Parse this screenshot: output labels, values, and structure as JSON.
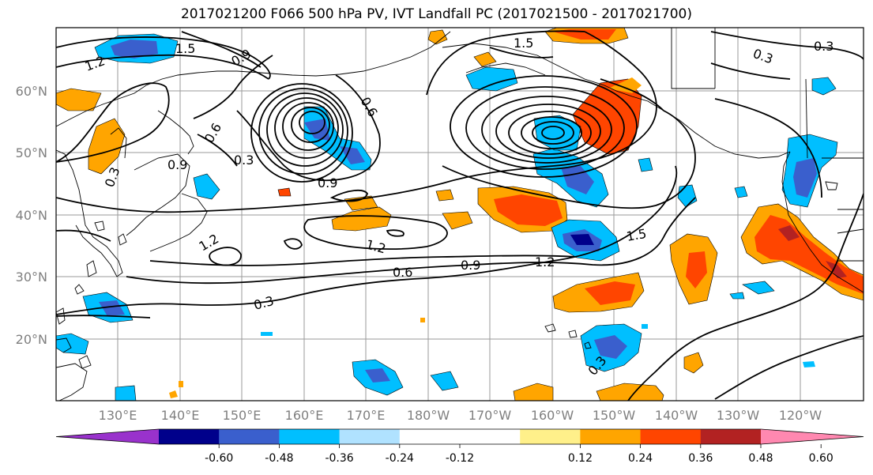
{
  "title": "2017021200 F066 500 hPa PV, IVT Landfall PC (2017021500 - 2017021700)",
  "lat_labels": [
    "60°N",
    "50°N",
    "40°N",
    "30°N",
    "20°N"
  ],
  "lon_labels": [
    "130°E",
    "140°E",
    "150°E",
    "160°E",
    "170°E",
    "180°W",
    "170°W",
    "160°W",
    "150°W",
    "140°W",
    "130°W",
    "120°W"
  ],
  "contour_labels": [
    "1.2",
    "1.5",
    "0.9",
    "0.6",
    "0.3",
    "0.9",
    "0.3",
    "0.6",
    "0.9",
    "1.2",
    "1.2",
    "0.6",
    "0.9",
    "1.2",
    "1.5",
    "0.3",
    "0.3",
    "1.5",
    "0.3",
    "0.3"
  ],
  "colorbar": {
    "colors": [
      "#9932cc",
      "#00008b",
      "#3a5fcd",
      "#00bfff",
      "#b0e2ff",
      "#ffffff",
      "#ffffff",
      "#fff08a",
      "#ffa500",
      "#ff4500",
      "#b22222",
      "#ff88b0"
    ],
    "tick_labels": [
      "-0.60",
      "-0.48",
      "-0.36",
      "-0.24",
      "-0.12",
      "0.12",
      "0.24",
      "0.36",
      "0.48",
      "0.60"
    ]
  }
}
